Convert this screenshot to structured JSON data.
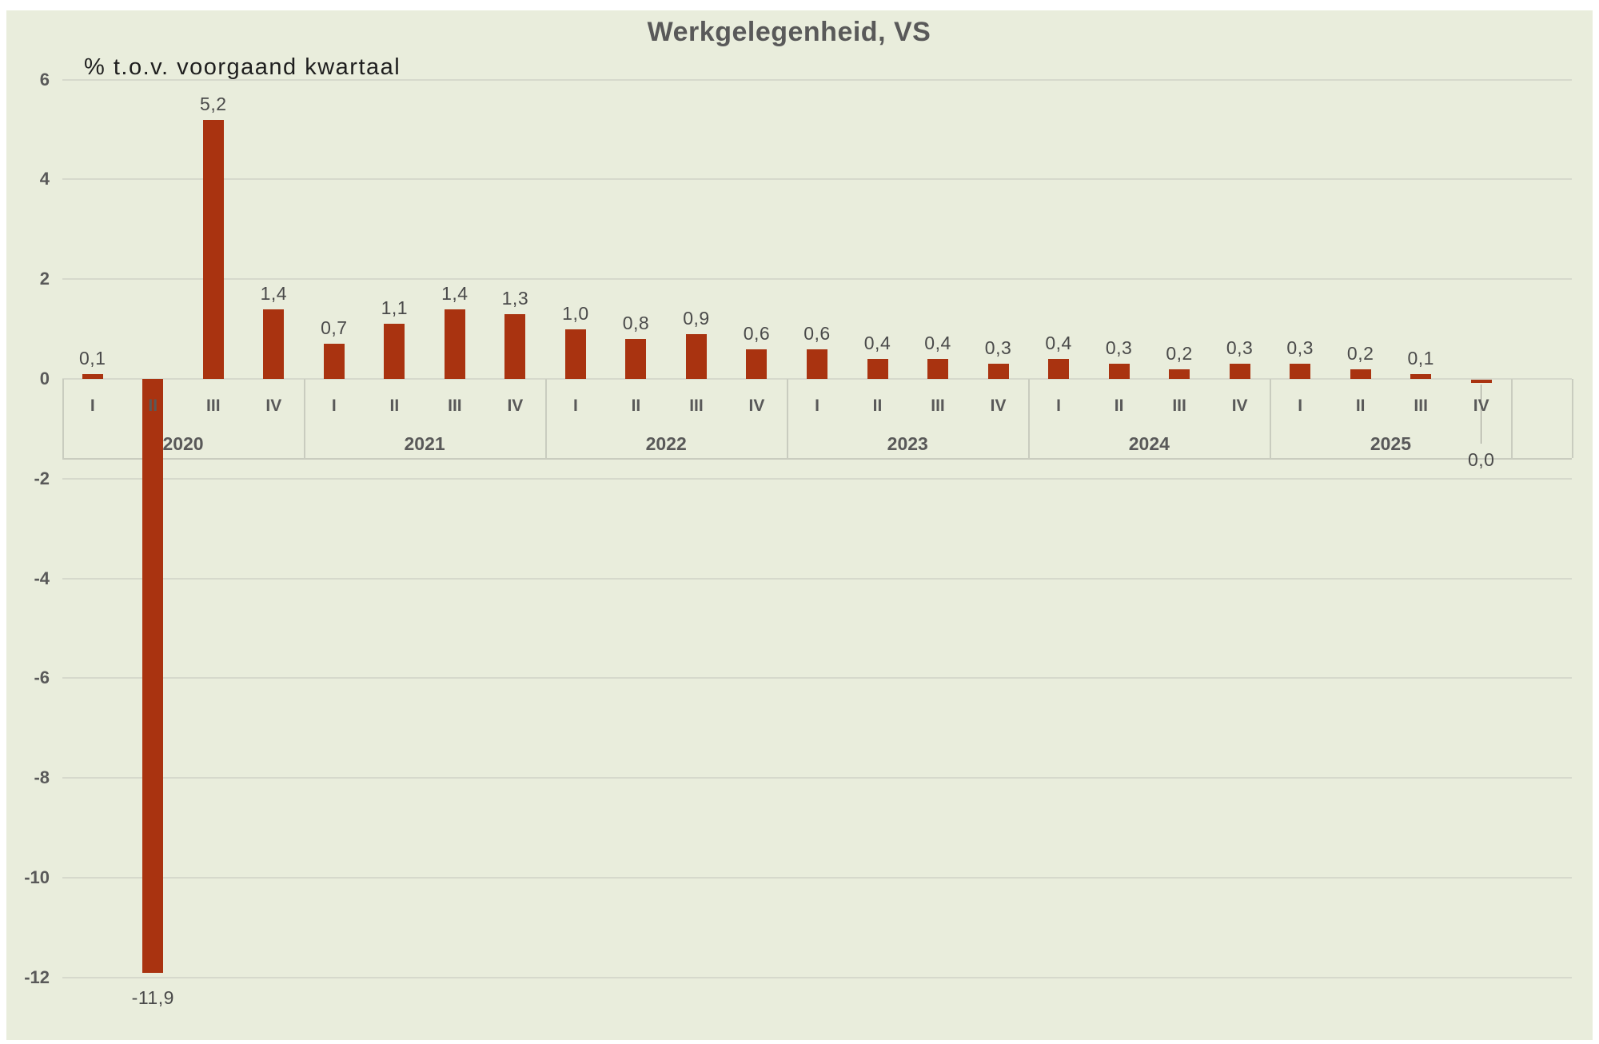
{
  "chart_data": {
    "type": "bar",
    "title": "Werkgelegenheid, VS",
    "note": "% t.o.v. voorgaand kwartaal",
    "categories": [
      "I",
      "II",
      "III",
      "IV",
      "I",
      "II",
      "III",
      "IV",
      "I",
      "II",
      "III",
      "IV",
      "I",
      "II",
      "III",
      "IV",
      "I",
      "II",
      "III",
      "IV",
      "I",
      "II",
      "III",
      "IV"
    ],
    "year_groups": [
      {
        "label": "2020",
        "start": 0,
        "span": 4
      },
      {
        "label": "2021",
        "start": 4,
        "span": 4
      },
      {
        "label": "2022",
        "start": 8,
        "span": 4
      },
      {
        "label": "2023",
        "start": 12,
        "span": 4
      },
      {
        "label": "2024",
        "start": 16,
        "span": 4
      },
      {
        "label": "2025",
        "start": 20,
        "span": 4
      }
    ],
    "series": [
      {
        "name": "Werkgelegenheid",
        "values": [
          0.1,
          -11.9,
          5.2,
          1.4,
          0.7,
          1.1,
          1.4,
          1.3,
          1.0,
          0.8,
          0.9,
          0.6,
          0.6,
          0.4,
          0.4,
          0.3,
          0.4,
          0.3,
          0.2,
          0.3,
          0.3,
          0.2,
          0.1,
          0.0
        ]
      }
    ],
    "value_labels": [
      "0,1",
      "-11,9",
      "5,2",
      "1,4",
      "0,7",
      "1,1",
      "1,4",
      "1,3",
      "1,0",
      "0,8",
      "0,9",
      "0,6",
      "0,6",
      "0,4",
      "0,4",
      "0,3",
      "0,4",
      "0,3",
      "0,2",
      "0,3",
      "0,3",
      "0,2",
      "0,1",
      "0,0"
    ],
    "ylim": [
      -12,
      6
    ],
    "ytick_step": 2,
    "ytick_labels": [
      "6",
      "4",
      "2",
      "0",
      "-2",
      "-4",
      "-6",
      "-8",
      "-10",
      "-12"
    ],
    "grid": true,
    "legend": "none",
    "extra_empty_slot_right": true
  },
  "colors": {
    "page": "#FFFFFF",
    "background": "#E9EDDC",
    "bar": "#A93310",
    "gridline": "#D6D9CC",
    "box_line": "#C9CCBF",
    "axis_text": "#595959",
    "value_text": "#4A4A4A",
    "note_text": "#1E1E1E",
    "title_text": "#595959",
    "leader_line": "#9B9B94"
  }
}
